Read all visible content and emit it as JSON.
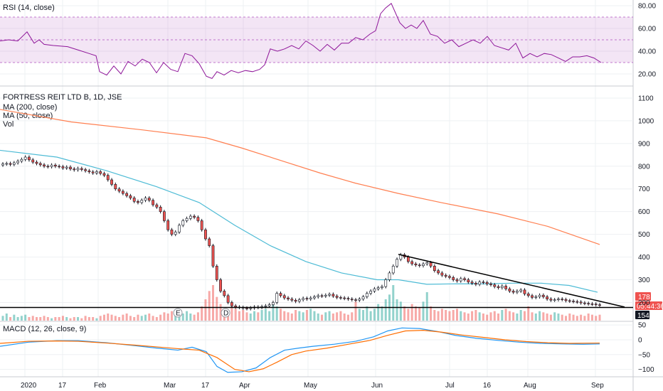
{
  "chart_data": [
    {
      "type": "line",
      "title": "RSI (14, close)",
      "ylim": [
        10,
        85
      ],
      "yticks": [
        20,
        40,
        60,
        80
      ],
      "ytick_labels": [
        "20.00",
        "40.00",
        "60.00",
        "80.00"
      ],
      "band": [
        30,
        70
      ],
      "line_color": "#8e1599",
      "band_color": "#9c27b0",
      "x": [
        0,
        12,
        25,
        38,
        48,
        55,
        62,
        75,
        95,
        110,
        125,
        135,
        140,
        150,
        160,
        170,
        180,
        190,
        200,
        210,
        220,
        230,
        240,
        250,
        260,
        270,
        280,
        290,
        298,
        305,
        315,
        325,
        335,
        345,
        355,
        365,
        372,
        380,
        390,
        400,
        410,
        420,
        430,
        440,
        450,
        460,
        470,
        480,
        490,
        500,
        510,
        520,
        528,
        535,
        542,
        550,
        555,
        562,
        570,
        578,
        586,
        595,
        605,
        615,
        625,
        635,
        645,
        655,
        665,
        675,
        685,
        695,
        705,
        715,
        725,
        735,
        745,
        755,
        765,
        775,
        785,
        795,
        805,
        815,
        825,
        835,
        845
      ],
      "y": [
        49,
        50,
        49,
        57,
        47,
        50,
        46,
        45,
        44,
        41,
        38,
        36,
        22,
        19,
        27,
        20,
        31,
        27,
        33,
        30,
        21,
        30,
        24,
        22,
        38,
        36,
        29,
        18,
        16,
        22,
        19,
        23,
        21,
        23,
        22,
        24,
        28,
        42,
        40,
        42,
        45,
        42,
        49,
        45,
        40,
        46,
        41,
        47,
        47,
        52,
        50,
        55,
        58,
        73,
        78,
        82,
        75,
        65,
        60,
        63,
        60,
        67,
        55,
        53,
        47,
        50,
        44,
        47,
        50,
        47,
        53,
        45,
        43,
        41,
        47,
        34,
        38,
        35,
        38,
        37,
        34,
        31,
        35,
        35,
        36,
        34,
        30
      ]
    },
    {
      "type": "candlestick",
      "title": "FORTRESS REIT LTD B, 1D, JSE",
      "legend": [
        "MA (200, close)",
        "MA (50, close)",
        "Vol"
      ],
      "ylim": [
        120,
        1150
      ],
      "yticks": [
        200,
        300,
        400,
        500,
        600,
        700,
        800,
        900,
        1000,
        1100
      ],
      "ytick_labels": [
        "200",
        "300",
        "400",
        "500",
        "600",
        "700",
        "800",
        "900",
        "1000",
        "1100"
      ],
      "candles_close": [
        810,
        812,
        808,
        815,
        822,
        830,
        840,
        828,
        818,
        812,
        806,
        800,
        798,
        805,
        800,
        798,
        792,
        796,
        788,
        784,
        790,
        785,
        780,
        775,
        770,
        776,
        768,
        760,
        740,
        720,
        700,
        690,
        680,
        670,
        660,
        645,
        640,
        650,
        660,
        650,
        630,
        620,
        600,
        560,
        520,
        500,
        510,
        540,
        560,
        570,
        580,
        575,
        560,
        520,
        480,
        450,
        360,
        300,
        250,
        230,
        200,
        185,
        180,
        178,
        175,
        173,
        176,
        180,
        178,
        182,
        185,
        190,
        200,
        240,
        230,
        220,
        215,
        210,
        205,
        212,
        218,
        215,
        220,
        225,
        230,
        228,
        232,
        236,
        228,
        222,
        220,
        218,
        215,
        212,
        210,
        215,
        225,
        240,
        250,
        260,
        265,
        270,
        300,
        330,
        360,
        390,
        410,
        400,
        380,
        370,
        365,
        362,
        370,
        375,
        360,
        340,
        330,
        320,
        315,
        310,
        300,
        295,
        305,
        300,
        290,
        285,
        280,
        290,
        288,
        282,
        278,
        270,
        265,
        272,
        260,
        250,
        245,
        250,
        255,
        238,
        230,
        222,
        225,
        232,
        225,
        215,
        210,
        212,
        215,
        213,
        208,
        206,
        204,
        202,
        198,
        196,
        194,
        193,
        190,
        188
      ],
      "ma200": [
        [
          0,
          1050
        ],
        [
          100,
          995
        ],
        [
          200,
          960
        ],
        [
          290,
          925
        ],
        [
          340,
          880
        ],
        [
          400,
          820
        ],
        [
          450,
          770
        ],
        [
          500,
          725
        ],
        [
          560,
          680
        ],
        [
          620,
          640
        ],
        [
          700,
          590
        ],
        [
          770,
          535
        ],
        [
          843,
          455
        ]
      ],
      "ma50": [
        [
          0,
          870
        ],
        [
          80,
          840
        ],
        [
          150,
          780
        ],
        [
          220,
          710
        ],
        [
          280,
          640
        ],
        [
          330,
          540
        ],
        [
          380,
          450
        ],
        [
          430,
          380
        ],
        [
          480,
          330
        ],
        [
          530,
          300
        ],
        [
          560,
          300
        ],
        [
          600,
          280
        ],
        [
          640,
          282
        ],
        [
          680,
          282
        ],
        [
          720,
          285
        ],
        [
          760,
          285
        ],
        [
          800,
          275
        ],
        [
          840,
          245
        ]
      ],
      "trendline": [
        [
          560,
          412
        ],
        [
          878,
          180
        ]
      ],
      "support": 178,
      "price_label": "178",
      "countdown_label": "05:44:36",
      "volume_label": "154",
      "events": [
        "E",
        "D"
      ],
      "volume": [
        4,
        6,
        3,
        5,
        3,
        4,
        5,
        3,
        4,
        3,
        3,
        4,
        3,
        2,
        3,
        3,
        4,
        3,
        2,
        3,
        3,
        2,
        4,
        3,
        3,
        2,
        4,
        5,
        6,
        5,
        4,
        3,
        5,
        6,
        4,
        3,
        5,
        4,
        5,
        6,
        4,
        3,
        5,
        7,
        6,
        8,
        5,
        7,
        6,
        8,
        6,
        5,
        7,
        12,
        18,
        25,
        30,
        20,
        14,
        10,
        9,
        12,
        10,
        8,
        9,
        7,
        6,
        8,
        7,
        9,
        10,
        8,
        14,
        12,
        10,
        8,
        7,
        6,
        9,
        8,
        7,
        9,
        10,
        8,
        6,
        5,
        7,
        8,
        6,
        7,
        8,
        6,
        5,
        7,
        16,
        10,
        9,
        12,
        8,
        10,
        14,
        12,
        18,
        22,
        30,
        18,
        16,
        12,
        10,
        14,
        12,
        11,
        16,
        24,
        12,
        9,
        8,
        10,
        9,
        8,
        9,
        10,
        8,
        7,
        6,
        8,
        9,
        7,
        6,
        5,
        7,
        8,
        6,
        9,
        10,
        8,
        7,
        6,
        9,
        8,
        12,
        7,
        6,
        8,
        7,
        6,
        5,
        7,
        6,
        5,
        4,
        6,
        5,
        4,
        5,
        4,
        6,
        5,
        4,
        5
      ]
    },
    {
      "type": "line",
      "title": "MACD (12, 26, close, 9)",
      "ylim": [
        -125,
        60
      ],
      "yticks": [
        50,
        0,
        -50,
        -100
      ],
      "ytick_labels": [
        "50",
        "0",
        "−50",
        "−100"
      ],
      "macd": [
        [
          0,
          -22
        ],
        [
          40,
          -8
        ],
        [
          80,
          -3
        ],
        [
          110,
          -3
        ],
        [
          150,
          -10
        ],
        [
          190,
          -20
        ],
        [
          220,
          -28
        ],
        [
          250,
          -35
        ],
        [
          270,
          -25
        ],
        [
          290,
          -40
        ],
        [
          305,
          -90
        ],
        [
          320,
          -110
        ],
        [
          340,
          -108
        ],
        [
          360,
          -95
        ],
        [
          380,
          -60
        ],
        [
          400,
          -35
        ],
        [
          420,
          -28
        ],
        [
          440,
          -22
        ],
        [
          470,
          -15
        ],
        [
          500,
          -5
        ],
        [
          525,
          10
        ],
        [
          545,
          30
        ],
        [
          565,
          40
        ],
        [
          590,
          38
        ],
        [
          615,
          28
        ],
        [
          640,
          15
        ],
        [
          670,
          5
        ],
        [
          700,
          -2
        ],
        [
          730,
          -8
        ],
        [
          760,
          -12
        ],
        [
          790,
          -14
        ],
        [
          820,
          -15
        ],
        [
          843,
          -14
        ]
      ],
      "signal": [
        [
          0,
          -12
        ],
        [
          40,
          -5
        ],
        [
          80,
          -4
        ],
        [
          110,
          -5
        ],
        [
          150,
          -11
        ],
        [
          190,
          -18
        ],
        [
          220,
          -24
        ],
        [
          250,
          -30
        ],
        [
          280,
          -35
        ],
        [
          305,
          -60
        ],
        [
          330,
          -100
        ],
        [
          350,
          -108
        ],
        [
          370,
          -98
        ],
        [
          390,
          -75
        ],
        [
          410,
          -50
        ],
        [
          430,
          -38
        ],
        [
          460,
          -28
        ],
        [
          490,
          -15
        ],
        [
          520,
          -2
        ],
        [
          545,
          15
        ],
        [
          570,
          30
        ],
        [
          595,
          32
        ],
        [
          620,
          26
        ],
        [
          650,
          16
        ],
        [
          680,
          8
        ],
        [
          710,
          0
        ],
        [
          740,
          -6
        ],
        [
          770,
          -10
        ],
        [
          800,
          -12
        ],
        [
          843,
          -11
        ]
      ],
      "macd_color": "#2196f3",
      "signal_color": "#ff6d00"
    }
  ],
  "x_axis": {
    "labels": [
      "2020",
      "17",
      "Feb",
      "Mar",
      "17",
      "Apr",
      "May",
      "Jun",
      "Jul",
      "16",
      "Aug",
      "Sep"
    ]
  },
  "colors": {
    "up": "#26a69a",
    "down": "#ef5350",
    "candle_body": "#131722",
    "ma200": "#ff7f50",
    "ma50": "#4dbbd5",
    "trendline": "#000000",
    "price_tag": "#ef5350",
    "volume_tag": "#131722"
  }
}
